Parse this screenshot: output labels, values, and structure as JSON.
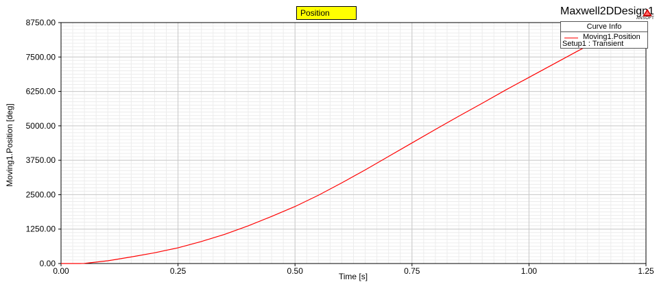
{
  "header": {
    "plot_title": "Position",
    "design_name": "Maxwell2DDesign1",
    "logo_text": "ANSOFT"
  },
  "legend": {
    "title": "Curve Info",
    "entries": [
      {
        "name": "Moving1.Position",
        "detail": "Setup1 : Transient",
        "color": "#ff0000"
      }
    ]
  },
  "chart_data": {
    "type": "line",
    "title": "Position",
    "xlabel": "Time [s]",
    "ylabel": "Moving1.Position [deg]",
    "xlim": [
      0,
      1.25
    ],
    "ylim": [
      0,
      8750
    ],
    "x_ticks": [
      "0.00",
      "0.25",
      "0.50",
      "0.75",
      "1.00",
      "1.25"
    ],
    "y_ticks": [
      "0.00",
      "1250.00",
      "2500.00",
      "3750.00",
      "5000.00",
      "6250.00",
      "7500.00",
      "8750.00"
    ],
    "grid": true,
    "legend_position": "top-right",
    "series": [
      {
        "name": "Moving1.Position",
        "color": "#ff0000",
        "x": [
          0.0,
          0.04,
          0.05,
          0.1,
          0.15,
          0.2,
          0.25,
          0.3,
          0.35,
          0.4,
          0.45,
          0.5,
          0.55,
          0.6,
          0.65,
          0.7,
          0.75,
          0.8,
          0.85,
          0.9,
          0.95,
          1.0,
          1.05,
          1.1,
          1.15
        ],
        "y": [
          0,
          0,
          5,
          100,
          240,
          390,
          570,
          800,
          1060,
          1370,
          1710,
          2070,
          2480,
          2930,
          3400,
          3890,
          4380,
          4870,
          5350,
          5820,
          6300,
          6760,
          7220,
          7680,
          8130
        ]
      }
    ]
  }
}
